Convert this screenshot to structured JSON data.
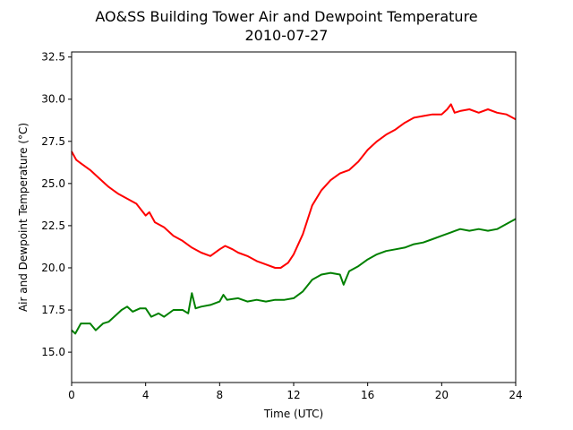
{
  "chart_data": {
    "type": "line",
    "title": "AO&SS Building Tower Air and Dewpoint Temperature",
    "subtitle": "2010-07-27",
    "xlabel": "Time (UTC)",
    "ylabel": "Air and Dewpoint Temperature (°C)",
    "xlim": [
      0,
      24
    ],
    "ylim": [
      13.2,
      32.8
    ],
    "xticks": [
      0,
      4,
      8,
      12,
      16,
      20,
      24
    ],
    "xtick_labels": [
      "0",
      "4",
      "8",
      "12",
      "16",
      "20",
      "24"
    ],
    "yticks": [
      15.0,
      17.5,
      20.0,
      22.5,
      25.0,
      27.5,
      30.0,
      32.5
    ],
    "ytick_labels": [
      "15.0",
      "17.5",
      "20.0",
      "22.5",
      "25.0",
      "27.5",
      "30.0",
      "32.5"
    ],
    "grid": false,
    "series": [
      {
        "color": "#ff0000",
        "x": [
          0,
          0.25,
          0.5,
          1,
          1.5,
          2,
          2.5,
          3,
          3.5,
          4,
          4.2,
          4.5,
          5,
          5.5,
          6,
          6.5,
          7,
          7.5,
          8,
          8.3,
          8.7,
          9,
          9.5,
          10,
          10.5,
          11,
          11.3,
          11.7,
          12,
          12.5,
          13,
          13.5,
          14,
          14.5,
          15,
          15.5,
          16,
          16.5,
          17,
          17.5,
          18,
          18.5,
          19,
          19.5,
          20,
          20.3,
          20.5,
          20.7,
          21,
          21.5,
          22,
          22.5,
          23,
          23.5,
          24
        ],
        "values": [
          26.9,
          26.4,
          26.2,
          25.8,
          25.3,
          24.8,
          24.4,
          24.1,
          23.8,
          23.1,
          23.3,
          22.7,
          22.4,
          21.9,
          21.6,
          21.2,
          20.9,
          20.7,
          21.1,
          21.3,
          21.1,
          20.9,
          20.7,
          20.4,
          20.2,
          20.0,
          20.0,
          20.3,
          20.8,
          22.0,
          23.7,
          24.6,
          25.2,
          25.6,
          25.8,
          26.3,
          27.0,
          27.5,
          27.9,
          28.2,
          28.6,
          28.9,
          29.0,
          29.1,
          29.1,
          29.4,
          29.7,
          29.2,
          29.3,
          29.4,
          29.2,
          29.4,
          29.2,
          29.1,
          28.8
        ]
      },
      {
        "color": "#008000",
        "x": [
          0,
          0.2,
          0.5,
          1,
          1.3,
          1.7,
          2,
          2.3,
          2.7,
          3,
          3.3,
          3.7,
          4,
          4.3,
          4.7,
          5,
          5.5,
          6,
          6.3,
          6.5,
          6.7,
          7,
          7.5,
          8,
          8.2,
          8.4,
          9,
          9.5,
          10,
          10.5,
          11,
          11.5,
          12,
          12.5,
          13,
          13.5,
          14,
          14.5,
          14.7,
          15,
          15.5,
          16,
          16.5,
          17,
          17.5,
          18,
          18.5,
          19,
          19.5,
          20,
          20.5,
          21,
          21.5,
          22,
          22.5,
          23,
          23.5,
          24
        ],
        "values": [
          16.3,
          16.1,
          16.7,
          16.7,
          16.3,
          16.7,
          16.8,
          17.1,
          17.5,
          17.7,
          17.4,
          17.6,
          17.6,
          17.1,
          17.3,
          17.1,
          17.5,
          17.5,
          17.3,
          18.5,
          17.6,
          17.7,
          17.8,
          18.0,
          18.4,
          18.1,
          18.2,
          18.0,
          18.1,
          18.0,
          18.1,
          18.1,
          18.2,
          18.6,
          19.3,
          19.6,
          19.7,
          19.6,
          19.0,
          19.8,
          20.1,
          20.5,
          20.8,
          21.0,
          21.1,
          21.2,
          21.4,
          21.5,
          21.7,
          21.9,
          22.1,
          22.3,
          22.2,
          22.3,
          22.2,
          22.3,
          22.6,
          22.9
        ]
      }
    ]
  }
}
